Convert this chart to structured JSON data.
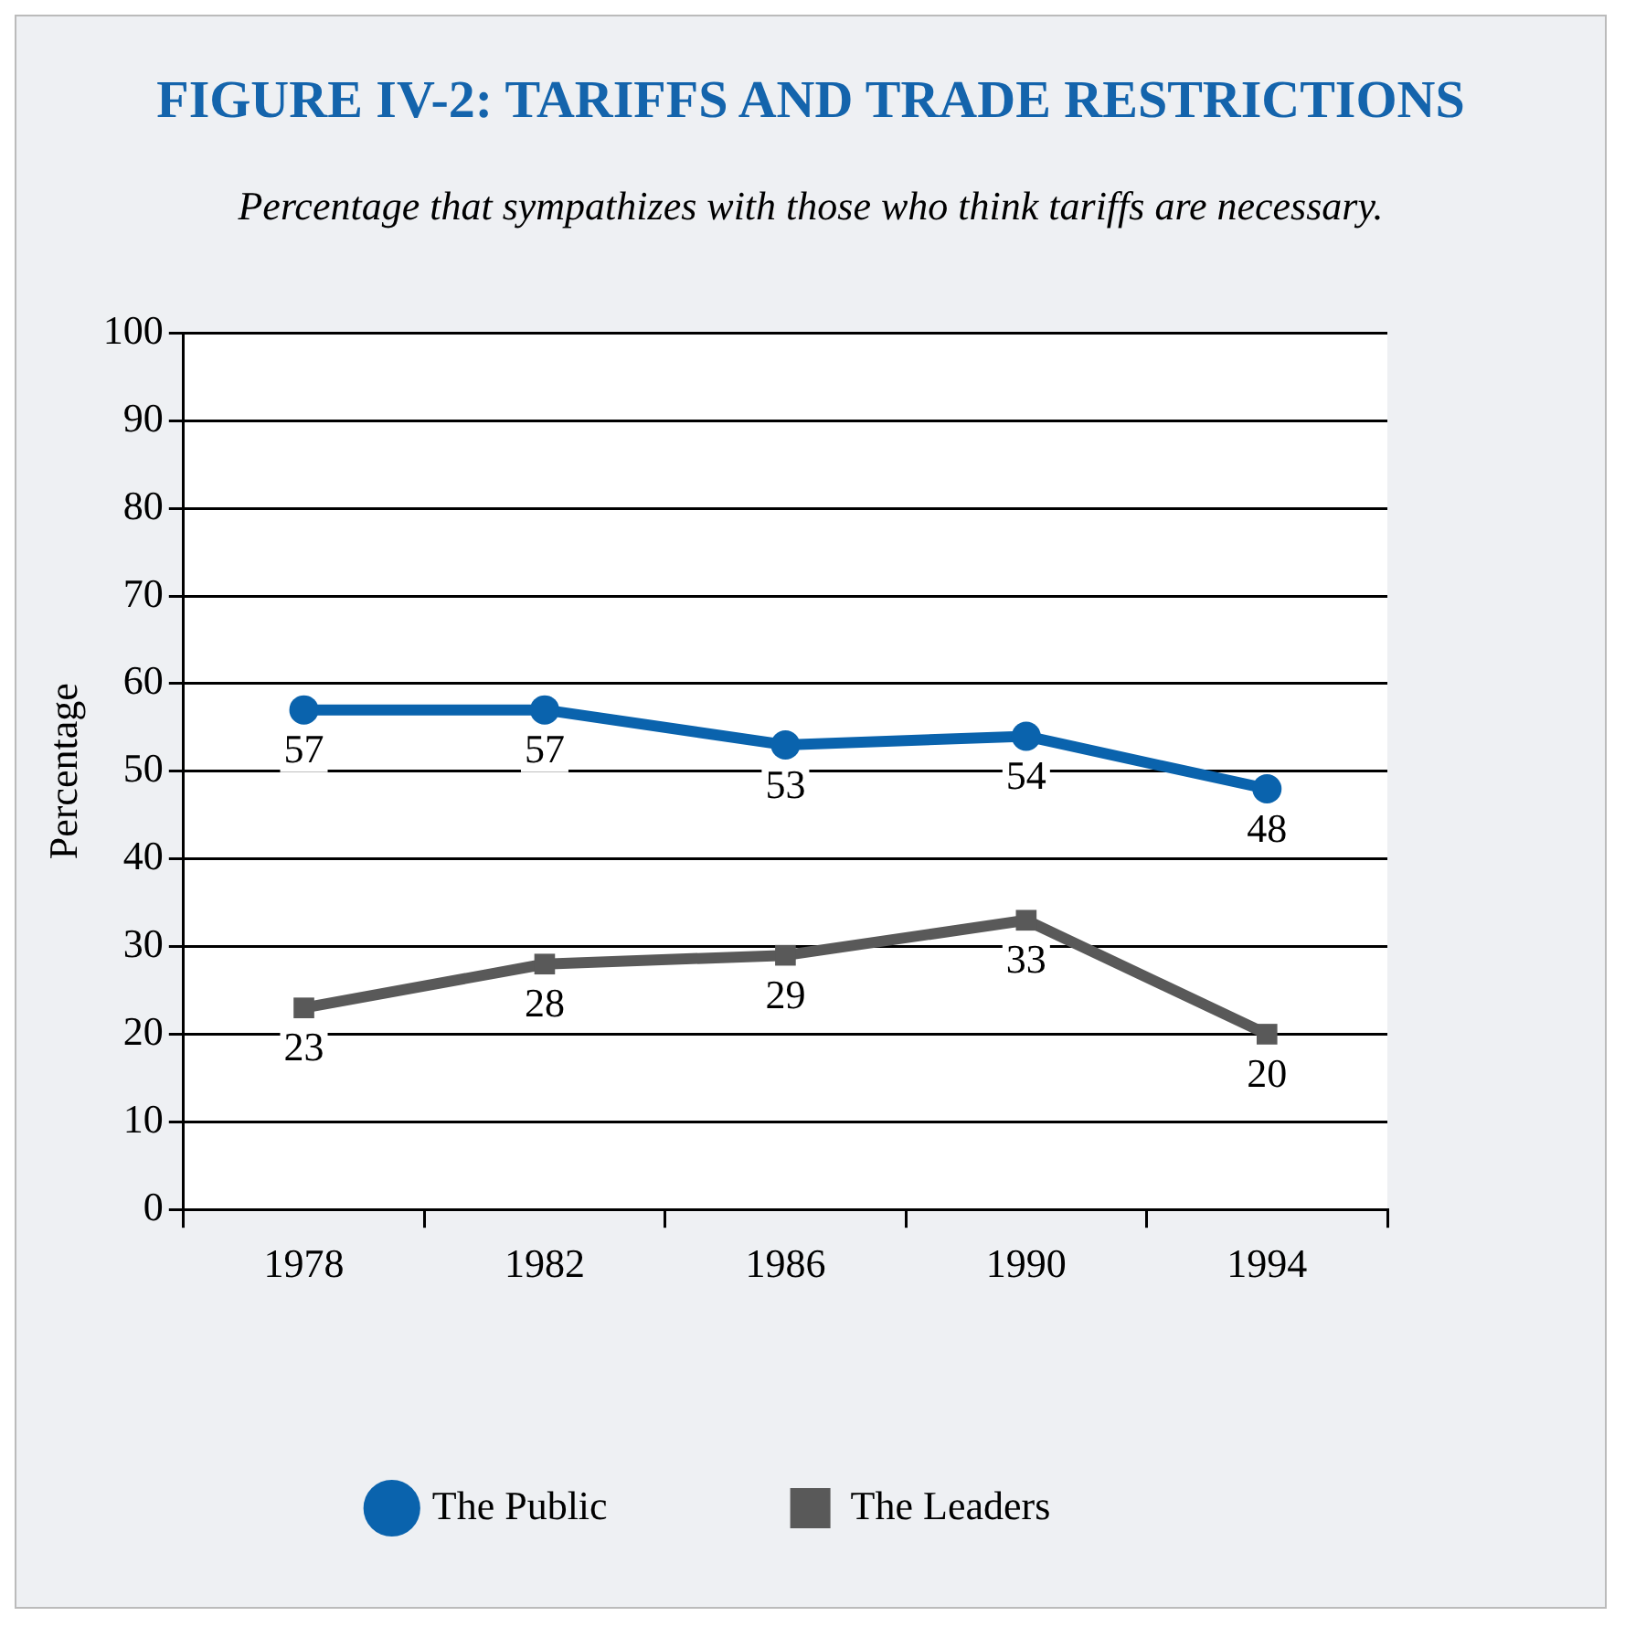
{
  "chart_data": {
    "type": "line",
    "title": "FIGURE IV-2: TARIFFS AND TRADE RESTRICTIONS",
    "subtitle": "Percentage that sympathizes with those who think tariffs are necessary.",
    "ylabel": "Percentage",
    "categories": [
      "1978",
      "1982",
      "1986",
      "1990",
      "1994"
    ],
    "series": [
      {
        "name": "The Public",
        "color": "#0a63ad",
        "marker": "circle",
        "values": [
          57,
          57,
          53,
          54,
          48
        ]
      },
      {
        "name": "The Leaders",
        "color": "#595959",
        "marker": "square",
        "values": [
          23,
          28,
          29,
          33,
          20
        ]
      }
    ],
    "ylim": [
      0,
      100
    ],
    "yticks": [
      0,
      10,
      20,
      30,
      40,
      50,
      60,
      70,
      80,
      90,
      100
    ],
    "grid": "y",
    "legend": "bottom",
    "data_labels": true
  }
}
